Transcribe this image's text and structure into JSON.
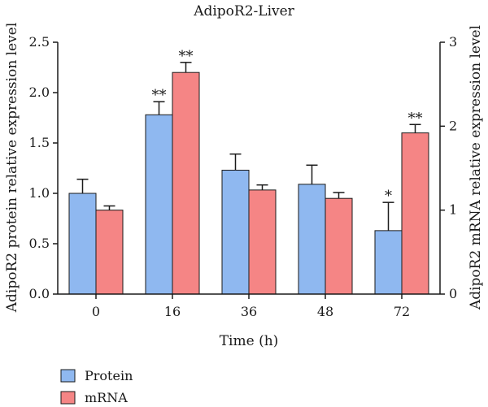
{
  "chart_data": {
    "type": "bar",
    "title": "AdipoR2-Liver",
    "xlabel": "Time (h)",
    "ylabel_left": "AdipoR2 protein relative expression level",
    "ylabel_right": "AdipoR2 mRNA relative expression level",
    "categories": [
      "0",
      "16",
      "36",
      "48",
      "72"
    ],
    "y_left_range": [
      0,
      2.5
    ],
    "y_left_ticks": [
      "0.0",
      "0.5",
      "1.0",
      "1.5",
      "2.0",
      "2.5"
    ],
    "y_right_range": [
      0,
      3
    ],
    "y_right_ticks": [
      "0",
      "1",
      "2",
      "3"
    ],
    "grid": false,
    "legend_position": "bottom-left",
    "series": [
      {
        "name": "Protein",
        "axis": "left",
        "color": "#8fb8f0",
        "values": [
          1.0,
          1.78,
          1.23,
          1.09,
          0.63
        ],
        "errors": [
          0.14,
          0.13,
          0.16,
          0.19,
          0.28
        ],
        "significance": [
          "",
          "**",
          "",
          "",
          "*"
        ]
      },
      {
        "name": "mRNA",
        "axis": "right",
        "color": "#f58585",
        "values": [
          1.0,
          2.64,
          1.24,
          1.14,
          1.92
        ],
        "errors": [
          0.05,
          0.12,
          0.06,
          0.07,
          0.1
        ],
        "significance": [
          "",
          "**",
          "",
          "",
          "**"
        ]
      }
    ]
  }
}
